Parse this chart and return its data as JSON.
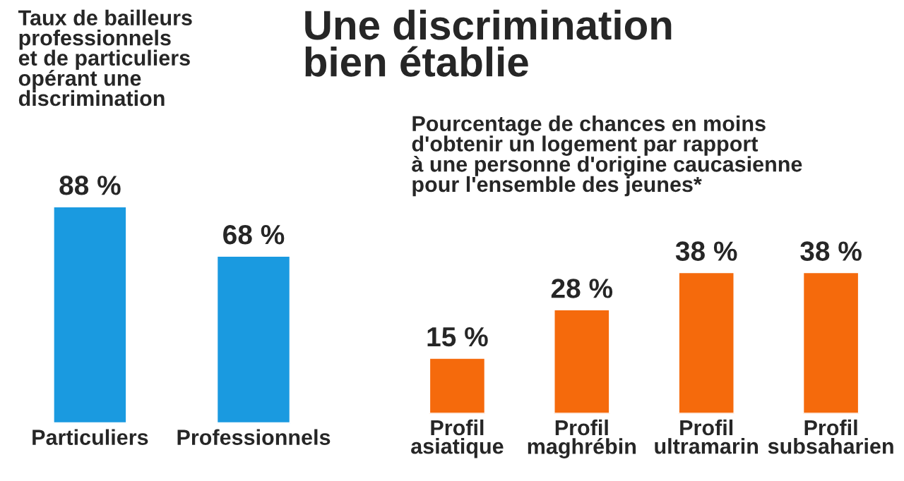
{
  "chart_data": [
    {
      "type": "bar",
      "title": "Taux de bailleurs\nprofessionnels\net de particuliers\nopérant une\ndiscrimination",
      "categories": [
        "Particuliers",
        "Professionnels"
      ],
      "values": [
        88,
        68
      ],
      "value_labels": [
        "88 %",
        "68 %"
      ],
      "color": "#1a9ae0"
    },
    {
      "type": "bar",
      "title": "Pourcentage de chances en moins\nd'obtenir un logement par rapport\nà une personne d'origine caucasienne\npour l'ensemble des jeunes*",
      "annotations": [
        "Une discrimination\nbien établie"
      ],
      "categories": [
        "Profil\nasiatique",
        "Profil\nmaghrébin",
        "Profil\nultramarin",
        "Profil\nsubsaharien"
      ],
      "values": [
        15,
        28,
        38,
        38
      ],
      "value_labels": [
        "15 %",
        "28 %",
        "38 %",
        "38 %"
      ],
      "color": "#f56a0c"
    }
  ]
}
